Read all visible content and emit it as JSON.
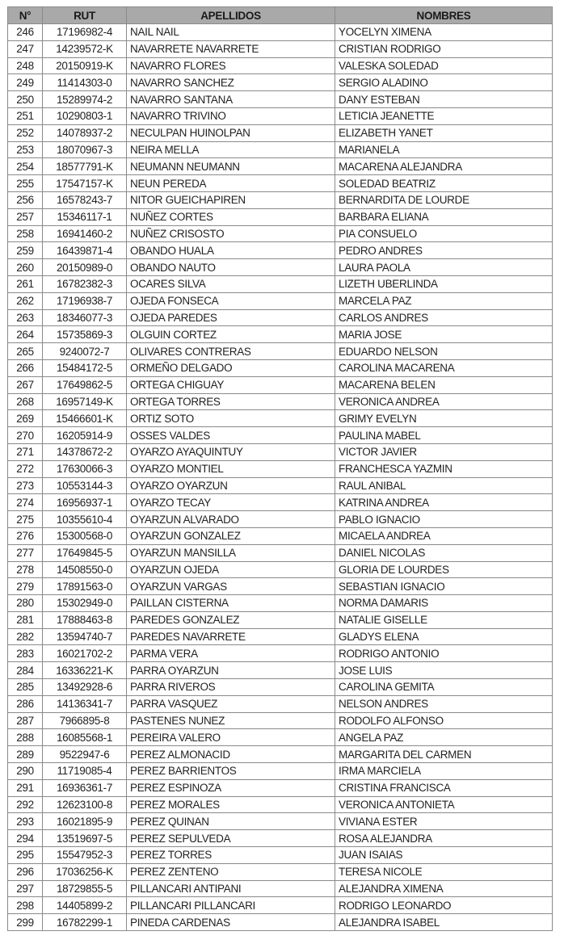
{
  "headers": {
    "num": "N°",
    "rut": "RUT",
    "apellidos": "APELLIDOS",
    "nombres": "NOMBRES"
  },
  "rows": [
    [
      "246",
      "17196982-4",
      "NAIL NAIL",
      "YOCELYN XIMENA"
    ],
    [
      "247",
      "14239572-K",
      "NAVARRETE NAVARRETE",
      "CRISTIAN RODRIGO"
    ],
    [
      "248",
      "20150919-K",
      "NAVARRO FLORES",
      "VALESKA SOLEDAD"
    ],
    [
      "249",
      "11414303-0",
      "NAVARRO SANCHEZ",
      "SERGIO ALADINO"
    ],
    [
      "250",
      "15289974-2",
      "NAVARRO SANTANA",
      "DANY ESTEBAN"
    ],
    [
      "251",
      "10290803-1",
      "NAVARRO TRIVINO",
      "LETICIA JEANETTE"
    ],
    [
      "252",
      "14078937-2",
      "NECULPAN HUINOLPAN",
      "ELIZABETH YANET"
    ],
    [
      "253",
      "18070967-3",
      "NEIRA MELLA",
      "MARIANELA"
    ],
    [
      "254",
      "18577791-K",
      "NEUMANN NEUMANN",
      "MACARENA ALEJANDRA"
    ],
    [
      "255",
      "17547157-K",
      "NEUN PEREDA",
      "SOLEDAD BEATRIZ"
    ],
    [
      "256",
      "16578243-7",
      "NITOR GUEICHAPIREN",
      "BERNARDITA DE LOURDE"
    ],
    [
      "257",
      "15346117-1",
      "NUÑEZ CORTES",
      "BARBARA ELIANA"
    ],
    [
      "258",
      "16941460-2",
      "NUÑEZ CRISOSTO",
      "PIA CONSUELO"
    ],
    [
      "259",
      "16439871-4",
      "OBANDO HUALA",
      "PEDRO ANDRES"
    ],
    [
      "260",
      "20150989-0",
      "OBANDO NAUTO",
      "LAURA PAOLA"
    ],
    [
      "261",
      "16782382-3",
      "OCARES SILVA",
      "LIZETH UBERLINDA"
    ],
    [
      "262",
      "17196938-7",
      "OJEDA FONSECA",
      "MARCELA PAZ"
    ],
    [
      "263",
      "18346077-3",
      "OJEDA PAREDES",
      "CARLOS ANDRES"
    ],
    [
      "264",
      "15735869-3",
      "OLGUIN CORTEZ",
      "MARIA JOSE"
    ],
    [
      "265",
      "9240072-7",
      "OLIVARES CONTRERAS",
      "EDUARDO NELSON"
    ],
    [
      "266",
      "15484172-5",
      "ORMEÑO DELGADO",
      "CAROLINA MACARENA"
    ],
    [
      "267",
      "17649862-5",
      "ORTEGA CHIGUAY",
      "MACARENA BELEN"
    ],
    [
      "268",
      "16957149-K",
      "ORTEGA TORRES",
      "VERONICA ANDREA"
    ],
    [
      "269",
      "15466601-K",
      "ORTIZ SOTO",
      "GRIMY EVELYN"
    ],
    [
      "270",
      "16205914-9",
      "OSSES VALDES",
      "PAULINA MABEL"
    ],
    [
      "271",
      "14378672-2",
      "OYARZO AYAQUINTUY",
      "VICTOR JAVIER"
    ],
    [
      "272",
      "17630066-3",
      "OYARZO MONTIEL",
      "FRANCHESCA YAZMIN"
    ],
    [
      "273",
      "10553144-3",
      "OYARZO OYARZUN",
      "RAUL ANIBAL"
    ],
    [
      "274",
      "16956937-1",
      "OYARZO TECAY",
      "KATRINA ANDREA"
    ],
    [
      "275",
      "10355610-4",
      "OYARZUN ALVARADO",
      "PABLO IGNACIO"
    ],
    [
      "276",
      "15300568-0",
      "OYARZUN GONZALEZ",
      "MICAELA ANDREA"
    ],
    [
      "277",
      "17649845-5",
      "OYARZUN MANSILLA",
      "DANIEL NICOLAS"
    ],
    [
      "278",
      "14508550-0",
      "OYARZUN OJEDA",
      "GLORIA DE LOURDES"
    ],
    [
      "279",
      "17891563-0",
      "OYARZUN VARGAS",
      "SEBASTIAN IGNACIO"
    ],
    [
      "280",
      "15302949-0",
      "PAILLAN CISTERNA",
      "NORMA DAMARIS"
    ],
    [
      "281",
      "17888463-8",
      "PAREDES GONZALEZ",
      "NATALIE GISELLE"
    ],
    [
      "282",
      "13594740-7",
      "PAREDES NAVARRETE",
      "GLADYS ELENA"
    ],
    [
      "283",
      "16021702-2",
      "PARMA VERA",
      "RODRIGO ANTONIO"
    ],
    [
      "284",
      "16336221-K",
      "PARRA OYARZUN",
      "JOSE LUIS"
    ],
    [
      "285",
      "13492928-6",
      "PARRA RIVEROS",
      "CAROLINA GEMITA"
    ],
    [
      "286",
      "14136341-7",
      "PARRA VASQUEZ",
      "NELSON ANDRES"
    ],
    [
      "287",
      "7966895-8",
      "PASTENES NUNEZ",
      "RODOLFO ALFONSO"
    ],
    [
      "288",
      "16085568-1",
      "PEREIRA VALERO",
      "ANGELA PAZ"
    ],
    [
      "289",
      "9522947-6",
      "PEREZ ALMONACID",
      "MARGARITA DEL CARMEN"
    ],
    [
      "290",
      "11719085-4",
      "PEREZ BARRIENTOS",
      "IRMA MARCIELA"
    ],
    [
      "291",
      "16936361-7",
      "PEREZ ESPINOZA",
      "CRISTINA FRANCISCA"
    ],
    [
      "292",
      "12623100-8",
      "PEREZ MORALES",
      "VERONICA ANTONIETA"
    ],
    [
      "293",
      "16021895-9",
      "PEREZ QUINAN",
      "VIVIANA ESTER"
    ],
    [
      "294",
      "13519697-5",
      "PEREZ SEPULVEDA",
      "ROSA ALEJANDRA"
    ],
    [
      "295",
      "15547952-3",
      "PEREZ TORRES",
      "JUAN ISAIAS"
    ],
    [
      "296",
      "17036256-K",
      "PEREZ ZENTENO",
      "TERESA NICOLE"
    ],
    [
      "297",
      "18729855-5",
      "PILLANCARI ANTIPANI",
      "ALEJANDRA XIMENA"
    ],
    [
      "298",
      "14405899-2",
      "PILLANCARI PILLANCARI",
      "RODRIGO LEONARDO"
    ],
    [
      "299",
      "16782299-1",
      "PINEDA CARDENAS",
      "ALEJANDRA ISABEL"
    ]
  ]
}
